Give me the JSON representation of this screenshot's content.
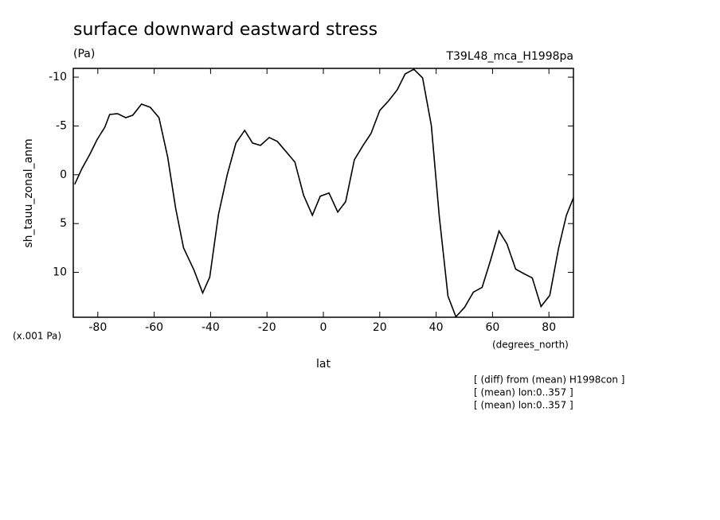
{
  "chart_data": {
    "type": "line",
    "title": "surface downward eastward stress",
    "units": "(Pa)",
    "run_label": "T39L48_mca_H1998pa",
    "y_label": "sh_tauu_zonal_anm",
    "y_scale_label": "(x.001 Pa)",
    "x_units": "(degrees_north)",
    "x_label": "lat",
    "notes": [
      "[ (diff) from (mean) H1998con ]",
      "[ (mean) lon:0..357 ]",
      "[ (mean) lon:0..357 ]"
    ],
    "color": "#000000",
    "x": [
      -88.2,
      -85.6,
      -82.8,
      -80.3,
      -77.5,
      -75.8,
      -73.0,
      -70.1,
      -67.6,
      -64.5,
      -61.4,
      -58.3,
      -55.2,
      -52.4,
      -49.6,
      -45.9,
      -42.8,
      -40.3,
      -37.2,
      -34.1,
      -31.0,
      -27.9,
      -25.1,
      -22.3,
      -19.2,
      -16.3,
      -13.2,
      -10.1,
      -7.0,
      -3.9,
      -1.1,
      2.0,
      5.1,
      7.9,
      11.0,
      14.1,
      16.9,
      20.0,
      23.1,
      26.2,
      29.0,
      32.1,
      35.2,
      38.3,
      41.1,
      44.2,
      47.0,
      50.1,
      53.2,
      56.3,
      59.2,
      62.3,
      65.1,
      68.2,
      71.3,
      74.1,
      77.2,
      80.3,
      83.4,
      86.2,
      88.7
    ],
    "values": [
      0.98,
      -0.65,
      -2.11,
      -3.58,
      -4.88,
      -6.18,
      -6.26,
      -5.85,
      -6.1,
      -7.24,
      -6.91,
      -5.85,
      -1.79,
      3.41,
      7.48,
      9.76,
      12.11,
      10.49,
      4.07,
      0,
      -3.25,
      -4.55,
      -3.25,
      -3.01,
      -3.82,
      -3.41,
      -2.36,
      -1.3,
      2.11,
      4.15,
      2.2,
      1.87,
      3.82,
      2.76,
      -1.54,
      -3.01,
      -4.23,
      -6.59,
      -7.56,
      -8.7,
      -10.33,
      -10.81,
      -9.92,
      -5.04,
      4.23,
      12.44,
      14.55,
      13.58,
      12.03,
      11.54,
      8.86,
      5.77,
      7.07,
      9.67,
      10.16,
      10.57,
      13.5,
      12.36,
      7.56,
      4.15,
      2.36
    ],
    "xlim": [
      -88.7,
      88.7
    ],
    "xticks": [
      -80,
      -60,
      -40,
      -20,
      0,
      20,
      40,
      60,
      80
    ],
    "ylim": [
      14.6,
      -10.9
    ],
    "yticks": [
      -10,
      -5,
      0,
      5,
      10
    ]
  }
}
